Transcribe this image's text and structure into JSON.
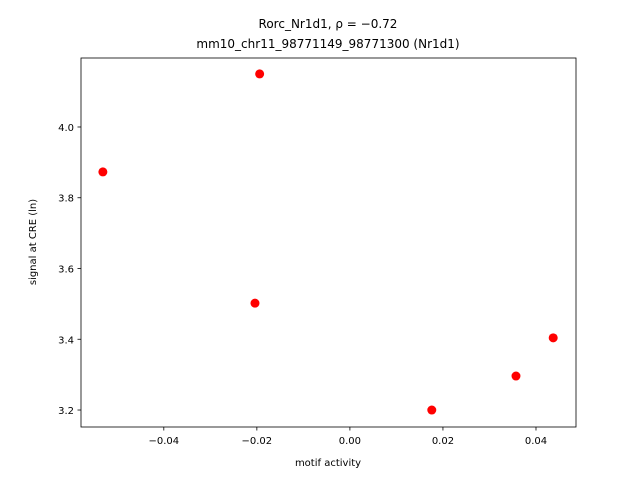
{
  "chart_data": {
    "type": "scatter",
    "title": "Rorc_Nr1d1, ρ = −0.72",
    "subtitle": "mm10_chr11_98771149_98771300 (Nr1d1)",
    "x_label": "motif activity",
    "y_label": "signal at CRE (ln)",
    "color": "#ff0000",
    "x": [
      -0.0531,
      -0.0194,
      -0.0204,
      0.0176,
      0.0357,
      0.0437
    ],
    "values": [
      3.873,
      4.15,
      3.502,
      3.2,
      3.296,
      3.404
    ],
    "xlim": [
      -0.0578,
      0.0486
    ],
    "ylim": [
      3.152,
      4.195
    ],
    "xticks": [
      {
        "value": -0.04,
        "label": "−0.04"
      },
      {
        "value": -0.02,
        "label": "−0.02"
      },
      {
        "value": 0,
        "label": "0.00"
      },
      {
        "value": 0.02,
        "label": "0.02"
      },
      {
        "value": 0.04,
        "label": "0.04"
      }
    ],
    "yticks": [
      3.2,
      3.4,
      3.6,
      3.8,
      {
        "value": 4,
        "label": "4.0"
      }
    ]
  }
}
